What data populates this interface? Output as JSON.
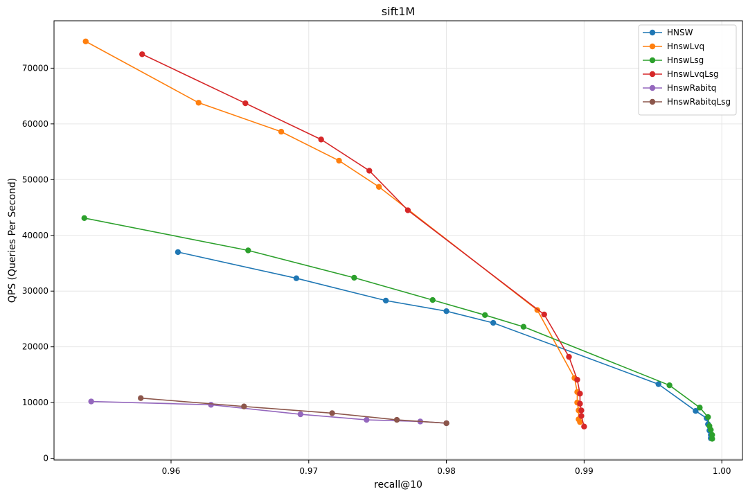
{
  "chart_data": {
    "type": "line",
    "title": "sift1M",
    "xlabel": "recall@10",
    "ylabel": "QPS (Queries Per Second)",
    "xlim": [
      0.9515,
      1.0015
    ],
    "ylim": [
      -300,
      78500
    ],
    "xticks": [
      "0.96",
      "0.97",
      "0.98",
      "0.99",
      "1.00"
    ],
    "xtick_values": [
      0.96,
      0.97,
      0.98,
      0.99,
      1.0
    ],
    "yticks": [
      "0",
      "10000",
      "20000",
      "30000",
      "40000",
      "50000",
      "60000",
      "70000"
    ],
    "ytick_values": [
      0,
      10000,
      20000,
      30000,
      40000,
      50000,
      60000,
      70000
    ],
    "grid": true,
    "legend_position": "top-right",
    "series": [
      {
        "name": "HNSW",
        "color": "#1f77b4",
        "points": [
          [
            0.9605,
            37000
          ],
          [
            0.9691,
            32300
          ],
          [
            0.9756,
            28300
          ],
          [
            0.98,
            26400
          ],
          [
            0.9834,
            24300
          ],
          [
            0.9954,
            13300
          ],
          [
            0.9981,
            8500
          ],
          [
            0.9989,
            7200
          ],
          [
            0.999,
            6100
          ],
          [
            0.9991,
            5000
          ],
          [
            0.9992,
            4200
          ],
          [
            0.9992,
            3600
          ]
        ]
      },
      {
        "name": "HnswLvq",
        "color": "#ff7f0e",
        "points": [
          [
            0.9538,
            74800
          ],
          [
            0.962,
            63800
          ],
          [
            0.968,
            58600
          ],
          [
            0.9722,
            53400
          ],
          [
            0.9751,
            48700
          ],
          [
            0.9866,
            26600
          ],
          [
            0.9893,
            14400
          ],
          [
            0.9895,
            11900
          ],
          [
            0.9895,
            10000
          ],
          [
            0.9896,
            8600
          ],
          [
            0.9896,
            7000
          ],
          [
            0.9897,
            6500
          ]
        ]
      },
      {
        "name": "HnswLsg",
        "color": "#2ca02c",
        "points": [
          [
            0.9537,
            43100
          ],
          [
            0.9656,
            37300
          ],
          [
            0.9733,
            32400
          ],
          [
            0.979,
            28400
          ],
          [
            0.9828,
            25700
          ],
          [
            0.9856,
            23600
          ],
          [
            0.9962,
            13100
          ],
          [
            0.9984,
            9100
          ],
          [
            0.999,
            7400
          ],
          [
            0.9991,
            5800
          ],
          [
            0.9992,
            5100
          ],
          [
            0.9993,
            4200
          ],
          [
            0.9993,
            3500
          ]
        ]
      },
      {
        "name": "HnswLvqLsg",
        "color": "#d62728",
        "points": [
          [
            0.9579,
            72500
          ],
          [
            0.9654,
            63700
          ],
          [
            0.9709,
            57200
          ],
          [
            0.9744,
            51600
          ],
          [
            0.9772,
            44500
          ],
          [
            0.9871,
            25800
          ],
          [
            0.9889,
            18200
          ],
          [
            0.9895,
            14100
          ],
          [
            0.9897,
            11600
          ],
          [
            0.9897,
            9800
          ],
          [
            0.9898,
            8600
          ],
          [
            0.9898,
            7600
          ],
          [
            0.99,
            5700
          ]
        ]
      },
      {
        "name": "HnswRabitq",
        "color": "#9467bd",
        "points": [
          [
            0.9542,
            10200
          ],
          [
            0.9629,
            9600
          ],
          [
            0.9694,
            7900
          ],
          [
            0.9742,
            6900
          ],
          [
            0.9781,
            6600
          ],
          [
            0.98,
            6300
          ]
        ]
      },
      {
        "name": "HnswRabitqLsg",
        "color": "#8c564b",
        "points": [
          [
            0.9578,
            10800
          ],
          [
            0.9653,
            9300
          ],
          [
            0.9717,
            8100
          ],
          [
            0.9764,
            6900
          ],
          [
            0.98,
            6300
          ]
        ]
      }
    ]
  }
}
